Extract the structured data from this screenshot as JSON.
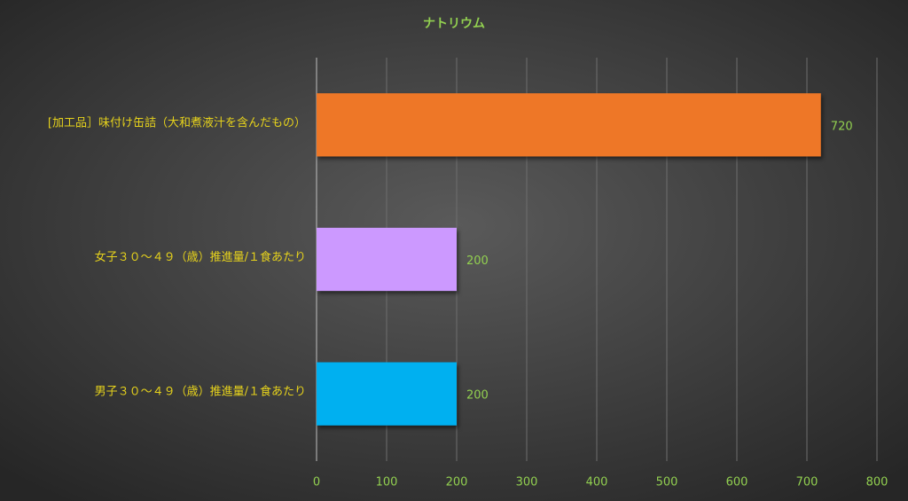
{
  "chart_data": {
    "type": "bar",
    "orientation": "horizontal",
    "title": "ナトリウム",
    "categories": [
      "[加工品］味付け缶詰（大和煮液汁を含んだもの）",
      "女子３０～４９（歳）推進量/１食あたり",
      "男子３０～４９（歳）推進量/１食あたり"
    ],
    "values": [
      720,
      200,
      200
    ],
    "colors": [
      "#ee7727",
      "#cc99ff",
      "#00b0f0"
    ],
    "xlim": [
      0,
      800
    ],
    "xticks": [
      0,
      100,
      200,
      300,
      400,
      500,
      600,
      700,
      800
    ],
    "grid": true
  }
}
